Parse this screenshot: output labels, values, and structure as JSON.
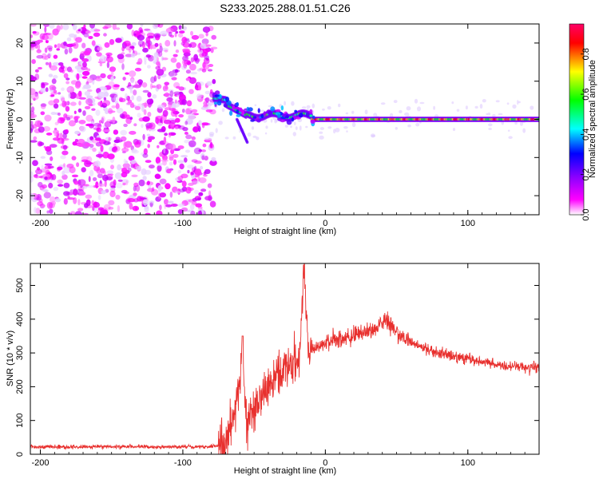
{
  "title": "S233.2025.288.01.51.C26",
  "chart_data": [
    {
      "type": "heatmap",
      "id": "spectrogram",
      "xlabel": "Height of straight line (km)",
      "ylabel": "Frequency (Hz)",
      "xlim": [
        -207,
        150
      ],
      "ylim": [
        -25,
        25
      ],
      "xticks": [
        -200,
        -100,
        0,
        100
      ],
      "yticks": [
        -20,
        -10,
        0,
        10,
        20
      ],
      "colorbar": {
        "label": "Normalized spectral amplitude",
        "range": [
          0,
          0.95
        ],
        "ticks": [
          0.0,
          0.2,
          0.4,
          0.6,
          0.8
        ],
        "tick_labels": [
          "0.0",
          "0.2",
          "0.4",
          "0.6",
          "0.8"
        ],
        "colormap_stops": [
          "#ffffff",
          "#ff00ff",
          "#8800ff",
          "#0000ff",
          "#00ffff",
          "#00ff00",
          "#ffff00",
          "#ff0000",
          "#ff0066"
        ]
      },
      "regions": [
        {
          "name": "noise",
          "x_range": [
            -207,
            -78
          ],
          "freq_range": [
            -25,
            25
          ],
          "amplitude": [
            0.0,
            0.12
          ]
        },
        {
          "name": "transition",
          "x_range": [
            -78,
            -10
          ],
          "freq_center": [
            5,
            0
          ],
          "amplitude": [
            0.1,
            0.7
          ]
        },
        {
          "name": "carrier",
          "x_range": [
            -10,
            150
          ],
          "freq_center": 0,
          "amplitude": [
            0.5,
            0.95
          ]
        }
      ]
    },
    {
      "type": "line",
      "id": "snr",
      "xlabel": "Height of straight line (km)",
      "ylabel": "SNR (10 * v/v)",
      "xlim": [
        -207,
        150
      ],
      "ylim": [
        0,
        565
      ],
      "xticks": [
        -200,
        -100,
        0,
        100
      ],
      "yticks": [
        0,
        100,
        200,
        300,
        400,
        500
      ],
      "color": "#e8302e",
      "series": [
        {
          "name": "SNR",
          "x": [
            -207,
            -180,
            -150,
            -120,
            -90,
            -75,
            -70,
            -66,
            -63,
            -60,
            -58,
            -56,
            -54,
            -50,
            -46,
            -42,
            -38,
            -34,
            -30,
            -26,
            -22,
            -18,
            -15,
            -12,
            -8,
            -4,
            0,
            5,
            10,
            15,
            20,
            25,
            30,
            35,
            40,
            43,
            46,
            50,
            55,
            60,
            70,
            80,
            90,
            100,
            110,
            120,
            130,
            140,
            150
          ],
          "y": [
            22,
            22,
            22,
            22,
            22,
            24,
            35,
            80,
            150,
            200,
            340,
            110,
            90,
            140,
            170,
            190,
            210,
            240,
            250,
            260,
            270,
            290,
            560,
            300,
            310,
            320,
            330,
            340,
            340,
            340,
            355,
            360,
            360,
            370,
            390,
            395,
            380,
            360,
            345,
            330,
            315,
            300,
            290,
            280,
            275,
            265,
            260,
            258,
            255
          ]
        }
      ]
    }
  ]
}
